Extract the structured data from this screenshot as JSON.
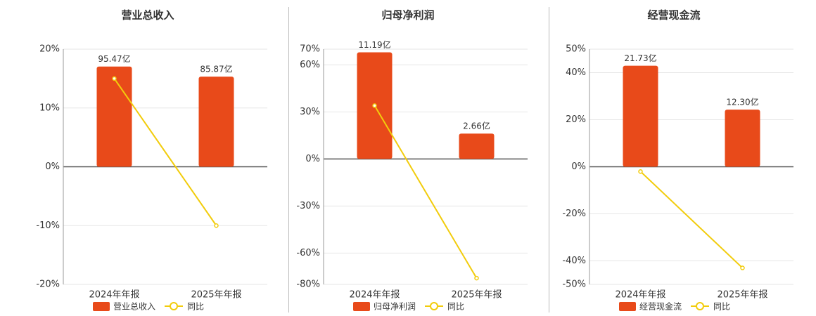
{
  "chart_data": [
    {
      "type": "bar",
      "title": "营业总收入",
      "categories": [
        "2024年年报",
        "2025年年报"
      ],
      "series": [
        {
          "name": "营业总收入",
          "color": "#e84a1a",
          "axis": "y2",
          "values": [
            95.47,
            85.87
          ],
          "value_labels": [
            "95.47亿",
            "85.87亿"
          ]
        },
        {
          "name": "同比",
          "type": "line",
          "color": "#f2cc0c",
          "values": [
            15,
            -10
          ]
        }
      ],
      "ylim": [
        -20,
        20
      ],
      "yticks": [
        {
          "value": 20,
          "label": "20%"
        },
        {
          "value": 10,
          "label": "10%"
        },
        {
          "value": 0,
          "label": "0%"
        },
        {
          "value": -10,
          "label": "-10%"
        },
        {
          "value": -20,
          "label": "-20%"
        }
      ],
      "y2lim": [
        -112,
        112
      ],
      "grid": true
    },
    {
      "type": "bar",
      "title": "归母净利润",
      "categories": [
        "2024年年报",
        "2025年年报"
      ],
      "series": [
        {
          "name": "归母净利润",
          "color": "#e84a1a",
          "axis": "y2",
          "values": [
            11.19,
            2.66
          ],
          "value_labels": [
            "11.19亿",
            "2.66亿"
          ]
        },
        {
          "name": "同比",
          "type": "line",
          "color": "#f2cc0c",
          "values": [
            34,
            -76
          ]
        }
      ],
      "ylim": [
        -80,
        70
      ],
      "yticks": [
        {
          "value": 70,
          "label": "70%"
        },
        {
          "value": 60,
          "label": "60%"
        },
        {
          "value": 30,
          "label": "30%"
        },
        {
          "value": 0,
          "label": "0%"
        },
        {
          "value": -30,
          "label": "-30%"
        },
        {
          "value": -60,
          "label": "-60%"
        },
        {
          "value": -80,
          "label": "-80%"
        }
      ],
      "y2lim": [
        -13.17,
        11.52
      ],
      "grid": true
    },
    {
      "type": "bar",
      "title": "经营现金流",
      "categories": [
        "2024年年报",
        "2025年年报"
      ],
      "series": [
        {
          "name": "经营现金流",
          "color": "#e84a1a",
          "axis": "y2",
          "values": [
            21.73,
            12.3
          ],
          "value_labels": [
            "21.73亿",
            "12.30亿"
          ]
        },
        {
          "name": "同比",
          "type": "line",
          "color": "#f2cc0c",
          "values": [
            -2,
            -43
          ]
        }
      ],
      "ylim": [
        -50,
        50
      ],
      "yticks": [
        {
          "value": 50,
          "label": "50%"
        },
        {
          "value": 40,
          "label": "40%"
        },
        {
          "value": 20,
          "label": "20%"
        },
        {
          "value": 0,
          "label": "0%"
        },
        {
          "value": -20,
          "label": "-20%"
        },
        {
          "value": -40,
          "label": "-40%"
        },
        {
          "value": -50,
          "label": "-50%"
        }
      ],
      "y2lim": [
        -25.3,
        25.3
      ],
      "grid": true
    }
  ]
}
